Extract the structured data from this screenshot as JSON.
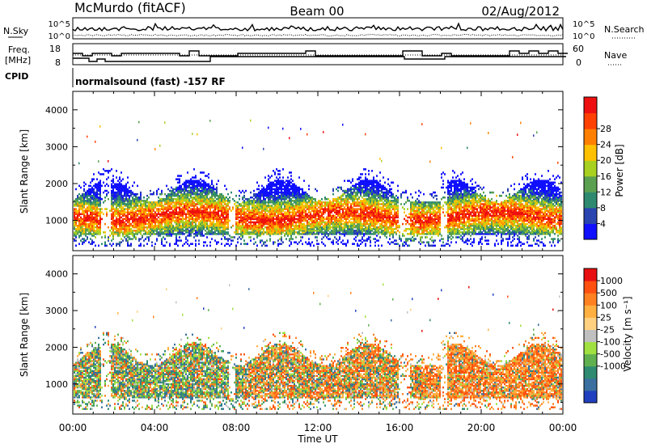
{
  "header": {
    "station": "McMurdo (fitACF)",
    "beam": "Beam 00",
    "date": "02/Aug/2012"
  },
  "summary": {
    "left_top": "N.Sky",
    "left_freq": "Freq.",
    "left_freq_unit": "[MHz]",
    "left_cpid": "CPID",
    "right_top": "N.Search",
    "right_nave": "Nave",
    "nsky_ticks": [
      "10^5",
      "10^0"
    ],
    "freq_ticks": [
      "18",
      "8"
    ],
    "nave_ticks": [
      "60",
      "0"
    ],
    "cpid_text": "normalsound (fast) -157 RF"
  },
  "chart_data": [
    {
      "type": "heatmap",
      "name": "power",
      "ylabel": "Slant Range [km]",
      "ylim": [
        180,
        4500
      ],
      "yticks": [
        "1000",
        "2000",
        "3000",
        "4000"
      ],
      "colorbar_label": "Power [dB]",
      "colorbar_ticks": [
        "4",
        "8",
        "12",
        "16",
        "20",
        "24",
        "28"
      ],
      "colors": [
        "#1010ff",
        "#2a44b0",
        "#2d8a70",
        "#5aa050",
        "#a8d020",
        "#ffc000",
        "#ff8000",
        "#ff4000",
        "#ee1010"
      ]
    },
    {
      "type": "heatmap",
      "name": "velocity",
      "ylabel": "Slant Range [km]",
      "ylim": [
        180,
        4500
      ],
      "yticks": [
        "1000",
        "2000",
        "3000",
        "4000"
      ],
      "colorbar_label": "Velocity [m s⁻¹]",
      "colorbar_ticks": [
        "1000",
        "500",
        "100",
        "25",
        "-25",
        "-100",
        "-500",
        "-1000"
      ],
      "colors": [
        "#2040c0",
        "#3a6fa0",
        "#2e8a70",
        "#60b050",
        "#a0e040",
        "#c0c0c0",
        "#ffd080",
        "#ffb040",
        "#ff8020",
        "#ff5010",
        "#e81010"
      ]
    }
  ],
  "xaxis": {
    "label": "Time UT",
    "ticks": [
      "00:00",
      "04:00",
      "08:00",
      "12:00",
      "16:00",
      "20:00",
      "00:00"
    ]
  }
}
